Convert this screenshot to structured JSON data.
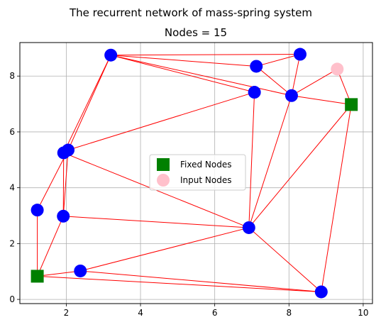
{
  "chart_data": {
    "type": "scatter",
    "suptitle": "The recurrent network of mass-spring system",
    "title": "Nodes = 15",
    "xlabel": "",
    "ylabel": "",
    "xlim": [
      0.75,
      10.25
    ],
    "ylim": [
      -0.15,
      9.2
    ],
    "xticks": [
      2,
      4,
      6,
      8,
      10
    ],
    "yticks": [
      0,
      2,
      4,
      6,
      8
    ],
    "grid": true,
    "legend": {
      "placement": "center",
      "entries": [
        {
          "label": "Fixed Nodes",
          "marker": "square",
          "color": "#008000"
        },
        {
          "label": "Input Nodes",
          "marker": "circle",
          "color": "#ffc0cb"
        }
      ]
    },
    "colors": {
      "edge": "#ff0000",
      "node": "#0000ff",
      "fixed": "#008000",
      "input": "#ffc0cb"
    },
    "nodes": [
      {
        "id": 0,
        "x": 3.2,
        "y": 8.75,
        "kind": "normal"
      },
      {
        "id": 1,
        "x": 8.3,
        "y": 8.78,
        "kind": "normal"
      },
      {
        "id": 2,
        "x": 7.12,
        "y": 8.35,
        "kind": "normal"
      },
      {
        "id": 3,
        "x": 9.3,
        "y": 8.25,
        "kind": "input"
      },
      {
        "id": 4,
        "x": 7.07,
        "y": 7.42,
        "kind": "normal"
      },
      {
        "id": 5,
        "x": 8.07,
        "y": 7.3,
        "kind": "normal"
      },
      {
        "id": 6,
        "x": 9.68,
        "y": 6.98,
        "kind": "fixed"
      },
      {
        "id": 7,
        "x": 2.05,
        "y": 5.35,
        "kind": "normal"
      },
      {
        "id": 8,
        "x": 1.93,
        "y": 5.25,
        "kind": "normal"
      },
      {
        "id": 9,
        "x": 1.22,
        "y": 3.2,
        "kind": "normal"
      },
      {
        "id": 10,
        "x": 1.92,
        "y": 2.98,
        "kind": "normal"
      },
      {
        "id": 11,
        "x": 6.92,
        "y": 2.57,
        "kind": "normal"
      },
      {
        "id": 12,
        "x": 1.22,
        "y": 0.83,
        "kind": "fixed"
      },
      {
        "id": 13,
        "x": 2.38,
        "y": 1.02,
        "kind": "normal"
      },
      {
        "id": 14,
        "x": 8.87,
        "y": 0.27,
        "kind": "normal"
      }
    ],
    "edges": [
      [
        0,
        1
      ],
      [
        0,
        2
      ],
      [
        0,
        5
      ],
      [
        0,
        4
      ],
      [
        0,
        7
      ],
      [
        0,
        8
      ],
      [
        1,
        2
      ],
      [
        1,
        5
      ],
      [
        2,
        5
      ],
      [
        3,
        5
      ],
      [
        3,
        6
      ],
      [
        4,
        7
      ],
      [
        4,
        11
      ],
      [
        5,
        6
      ],
      [
        5,
        11
      ],
      [
        6,
        11
      ],
      [
        6,
        14
      ],
      [
        7,
        8
      ],
      [
        7,
        10
      ],
      [
        7,
        9
      ],
      [
        8,
        11
      ],
      [
        8,
        10
      ],
      [
        9,
        12
      ],
      [
        10,
        11
      ],
      [
        10,
        12
      ],
      [
        11,
        13
      ],
      [
        11,
        14
      ],
      [
        12,
        13
      ],
      [
        12,
        14
      ],
      [
        13,
        14
      ]
    ]
  }
}
